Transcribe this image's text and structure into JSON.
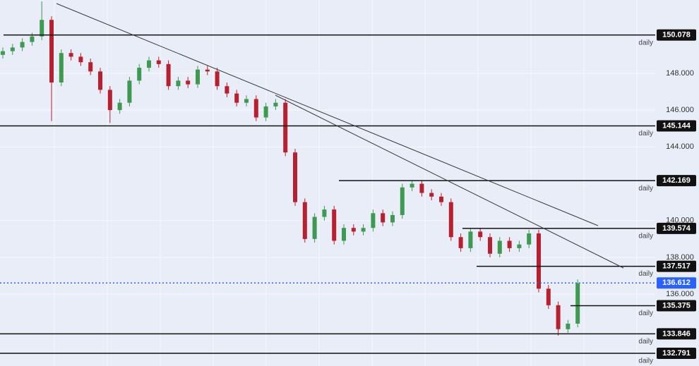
{
  "chart_data": {
    "type": "candlestick",
    "ylim": [
      132.1,
      151.98
    ],
    "yticks": [
      {
        "value": 148,
        "label": "148.000"
      },
      {
        "value": 146,
        "label": "146.000"
      },
      {
        "value": 144,
        "label": "144.000"
      },
      {
        "value": 140,
        "label": "140.000"
      },
      {
        "value": 138,
        "label": "138.000"
      },
      {
        "value": 136,
        "label": "136.000"
      }
    ],
    "grid": true,
    "up_color": "#3d9a50",
    "down_color": "#b8202f",
    "open": [
      149.0,
      149.2,
      149.4,
      149.7,
      150.0,
      150.9,
      147.5,
      149.1,
      148.9,
      148.6,
      148.1,
      147.1,
      146.0,
      146.4,
      147.6,
      148.3,
      148.7,
      148.5,
      147.3,
      147.6,
      147.4,
      148.2,
      148.1,
      147.3,
      146.9,
      146.4,
      146.6,
      145.6,
      146.2,
      146.4,
      143.7,
      141.0,
      139.0,
      140.2,
      140.6,
      138.9,
      139.6,
      139.4,
      139.6,
      140.4,
      139.9,
      140.3,
      141.8,
      142.0,
      141.5,
      141.3,
      141.0,
      139.1,
      138.5,
      139.4,
      139.1,
      138.2,
      138.9,
      138.5,
      138.7,
      139.3,
      136.3,
      135.4,
      134.1,
      134.4
    ],
    "high": [
      149.4,
      149.6,
      149.9,
      150.2,
      151.9,
      151.1,
      149.3,
      149.3,
      149.1,
      148.8,
      148.3,
      147.3,
      146.6,
      147.8,
      148.5,
      148.9,
      148.9,
      148.7,
      147.8,
      147.8,
      148.4,
      148.4,
      148.3,
      147.5,
      147.1,
      146.8,
      146.8,
      146.4,
      146.6,
      146.6,
      143.9,
      141.2,
      140.4,
      140.8,
      140.8,
      139.8,
      139.8,
      139.8,
      140.6,
      140.6,
      140.5,
      142.0,
      142.2,
      142.2,
      141.7,
      141.5,
      141.2,
      139.3,
      139.6,
      139.6,
      139.3,
      139.1,
      139.1,
      138.9,
      139.5,
      139.5,
      136.5,
      135.6,
      134.6,
      136.8
    ],
    "low": [
      148.8,
      149.0,
      149.2,
      149.5,
      149.8,
      145.4,
      147.3,
      148.7,
      148.4,
      147.9,
      146.9,
      145.3,
      145.8,
      146.2,
      147.4,
      148.1,
      148.3,
      147.1,
      147.1,
      147.2,
      147.2,
      147.9,
      147.1,
      146.7,
      146.2,
      146.2,
      145.4,
      145.4,
      146.0,
      143.5,
      140.8,
      138.8,
      138.8,
      140.0,
      138.7,
      138.7,
      139.2,
      139.2,
      139.4,
      139.7,
      139.7,
      140.1,
      141.6,
      141.3,
      141.1,
      140.8,
      138.9,
      138.3,
      138.3,
      138.9,
      138.0,
      138.0,
      138.3,
      138.3,
      138.5,
      136.1,
      135.2,
      133.75,
      133.9,
      134.2
    ],
    "close": [
      149.2,
      149.4,
      149.7,
      150.0,
      150.9,
      147.5,
      149.1,
      148.9,
      148.6,
      148.1,
      147.1,
      146.0,
      146.4,
      147.6,
      148.3,
      148.7,
      148.5,
      147.3,
      147.6,
      147.4,
      148.2,
      148.1,
      147.3,
      146.9,
      146.4,
      146.6,
      145.6,
      146.2,
      146.4,
      143.7,
      141.0,
      139.0,
      140.2,
      140.6,
      138.9,
      139.6,
      139.4,
      139.6,
      140.4,
      139.9,
      140.3,
      141.8,
      142.0,
      141.5,
      141.3,
      141.0,
      139.1,
      138.5,
      139.4,
      139.1,
      138.2,
      138.9,
      138.5,
      138.7,
      139.3,
      136.3,
      135.4,
      134.1,
      134.4,
      136.6
    ],
    "levels": [
      {
        "value": 150.078,
        "tag": "daily"
      },
      {
        "value": 145.144,
        "tag": "daily"
      },
      {
        "value": 142.169,
        "tag": "daily"
      },
      {
        "value": 139.574,
        "tag": "daily"
      },
      {
        "value": 137.517,
        "tag": "daily"
      },
      {
        "value": 135.375,
        "tag": "daily"
      },
      {
        "value": 133.846,
        "tag": "daily"
      },
      {
        "value": 132.791,
        "tag": "daily"
      }
    ],
    "last_price": 136.612,
    "last_price_color": "#2962ff"
  }
}
